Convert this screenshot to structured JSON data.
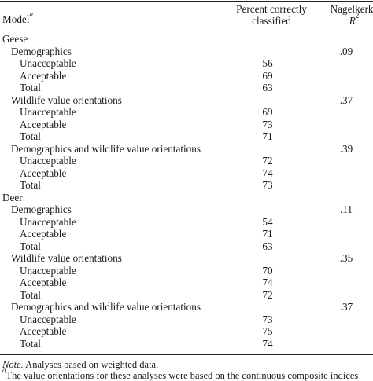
{
  "header": {
    "model_label": "Model",
    "model_sup": "a",
    "pct_line1": "Percent correctly",
    "pct_line2": "classified",
    "r2_line1": "Nagelkerke",
    "r2_line2": "R",
    "r2_sup": "2"
  },
  "groups": [
    {
      "name": "Geese",
      "models": [
        {
          "name": "Demographics",
          "r2": ".09",
          "rows": [
            {
              "label": "Unacceptable",
              "value": "56"
            },
            {
              "label": "Acceptable",
              "value": "69"
            },
            {
              "label": "Total",
              "value": "63"
            }
          ]
        },
        {
          "name": "Wildlife value orientations",
          "r2": ".37",
          "rows": [
            {
              "label": "Unacceptable",
              "value": "69"
            },
            {
              "label": "Acceptable",
              "value": "73"
            },
            {
              "label": "Total",
              "value": "71"
            }
          ]
        },
        {
          "name": "Demographics and wildlife value orientations",
          "r2": ".39",
          "rows": [
            {
              "label": "Unacceptable",
              "value": "72"
            },
            {
              "label": "Acceptable",
              "value": "74"
            },
            {
              "label": "Total",
              "value": "73"
            }
          ]
        }
      ]
    },
    {
      "name": "Deer",
      "models": [
        {
          "name": "Demographics",
          "r2": ".11",
          "rows": [
            {
              "label": "Unacceptable",
              "value": "54"
            },
            {
              "label": "Acceptable",
              "value": "71"
            },
            {
              "label": "Total",
              "value": "63"
            }
          ]
        },
        {
          "name": "Wildlife value orientations",
          "r2": ".35",
          "rows": [
            {
              "label": "Unacceptable",
              "value": "70"
            },
            {
              "label": "Acceptable",
              "value": "74"
            },
            {
              "label": "Total",
              "value": "72"
            }
          ]
        },
        {
          "name": "Demographics and wildlife value orientations",
          "r2": ".37",
          "rows": [
            {
              "label": "Unacceptable",
              "value": "73"
            },
            {
              "label": "Acceptable",
              "value": "75"
            },
            {
              "label": "Total",
              "value": "74"
            }
          ]
        }
      ]
    }
  ],
  "notes": {
    "note_label": "Note.",
    "note_text": " Analyses based on weighted data.",
    "footnote_sup": "a",
    "footnote_text": "The value orientations for these analyses were based on the continuous composite indices"
  }
}
